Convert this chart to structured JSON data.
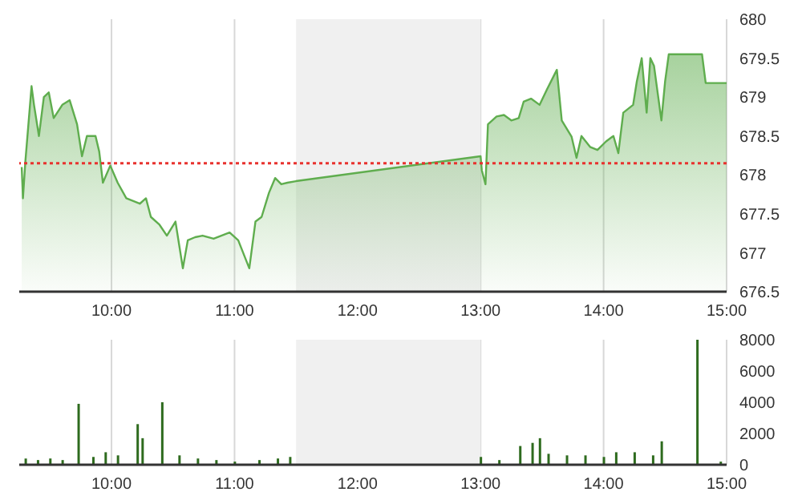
{
  "chart_data": [
    {
      "type": "area",
      "xlim": [
        9.25,
        15
      ],
      "xticks": [
        {
          "value": 10,
          "label": "10:00"
        },
        {
          "value": 11,
          "label": "11:00"
        },
        {
          "value": 12,
          "label": "12:00"
        },
        {
          "value": 13,
          "label": "13:00"
        },
        {
          "value": 14,
          "label": "14:00"
        },
        {
          "value": 15,
          "label": "15:00"
        }
      ],
      "ylim": [
        676.5,
        680
      ],
      "yticks": [
        676.5,
        677,
        677.5,
        678,
        678.5,
        679,
        679.5,
        680
      ],
      "grid": true,
      "bands": [
        {
          "axis": "x",
          "from": 11.5,
          "to": 13,
          "color": "#f0f0f0"
        }
      ],
      "ref_lines": [
        {
          "axis": "y",
          "value": 678.15,
          "color": "#e8322e",
          "line_style": "dotted"
        }
      ],
      "series": [
        {
          "color": "#5fad4e",
          "x": [
            9.27,
            9.28,
            9.3,
            9.35,
            9.37,
            9.41,
            9.45,
            9.49,
            9.53,
            9.6,
            9.66,
            9.72,
            9.76,
            9.8,
            9.87,
            9.9,
            9.93,
            9.99,
            10.05,
            10.12,
            10.23,
            10.28,
            10.32,
            10.39,
            10.45,
            10.52,
            10.55,
            10.58,
            10.62,
            10.68,
            10.74,
            10.83,
            10.96,
            11.03,
            11.12,
            11.17,
            11.22,
            11.28,
            11.33,
            11.38,
            11.43,
            11.5,
            13,
            13.01,
            13.04,
            13.06,
            13.13,
            13.19,
            13.25,
            13.31,
            13.35,
            13.41,
            13.48,
            13.54,
            13.62,
            13.66,
            13.74,
            13.78,
            13.82,
            13.89,
            13.95,
            14.02,
            14.08,
            14.12,
            14.16,
            14.24,
            14.27,
            14.31,
            14.35,
            14.38,
            14.41,
            14.47,
            14.5,
            14.53,
            14.56,
            14.6,
            14.8,
            14.83,
            15
          ],
          "values": [
            678.1,
            677.7,
            678.18,
            679.14,
            678.9,
            678.5,
            679,
            679.06,
            678.73,
            678.9,
            678.96,
            678.65,
            678.24,
            678.5,
            678.5,
            678.3,
            677.9,
            678.12,
            677.9,
            677.7,
            677.63,
            677.7,
            677.46,
            677.36,
            677.22,
            677.4,
            677.1,
            676.8,
            677.16,
            677.2,
            677.22,
            677.18,
            677.26,
            677.16,
            676.8,
            677.4,
            677.46,
            677.77,
            677.96,
            677.88,
            677.9,
            677.92,
            678.24,
            678.06,
            677.88,
            678.65,
            678.75,
            678.77,
            678.7,
            678.73,
            678.94,
            678.98,
            678.9,
            679.1,
            679.35,
            678.7,
            678.49,
            678.22,
            678.5,
            678.36,
            678.32,
            678.43,
            678.5,
            678.28,
            678.8,
            678.9,
            679.2,
            679.5,
            678.8,
            679.5,
            679.4,
            678.7,
            679.2,
            679.55,
            679.55,
            679.55,
            679.55,
            679.18,
            679.18
          ]
        }
      ]
    },
    {
      "type": "bar",
      "xlim": [
        9.25,
        15
      ],
      "xticks": [
        {
          "value": 10,
          "label": "10:00"
        },
        {
          "value": 11,
          "label": "11:00"
        },
        {
          "value": 12,
          "label": "12:00"
        },
        {
          "value": 13,
          "label": "13:00"
        },
        {
          "value": 14,
          "label": "14:00"
        },
        {
          "value": 15,
          "label": "15:00"
        }
      ],
      "ylim": [
        0,
        8000
      ],
      "yticks": [
        0,
        2000,
        4000,
        6000,
        8000
      ],
      "grid": true,
      "bands": [
        {
          "axis": "x",
          "from": 11.5,
          "to": 13,
          "color": "#f0f0f0"
        }
      ],
      "series": [
        {
          "color": "#2e6b1e",
          "x": [
            9.3,
            9.4,
            9.5,
            9.6,
            9.73,
            9.85,
            9.95,
            10.05,
            10.21,
            10.25,
            10.41,
            10.55,
            10.7,
            10.85,
            11,
            11.2,
            11.35,
            11.45,
            13,
            13.15,
            13.32,
            13.42,
            13.48,
            13.55,
            13.7,
            13.85,
            14,
            14.1,
            14.25,
            14.4,
            14.47,
            14.76,
            14.95
          ],
          "values": [
            400,
            300,
            400,
            300,
            3900,
            500,
            800,
            600,
            2600,
            1700,
            4000,
            600,
            400,
            300,
            200,
            300,
            400,
            500,
            500,
            300,
            1200,
            1400,
            1700,
            700,
            600,
            600,
            500,
            800,
            800,
            600,
            1500,
            8000,
            200
          ]
        }
      ]
    }
  ]
}
